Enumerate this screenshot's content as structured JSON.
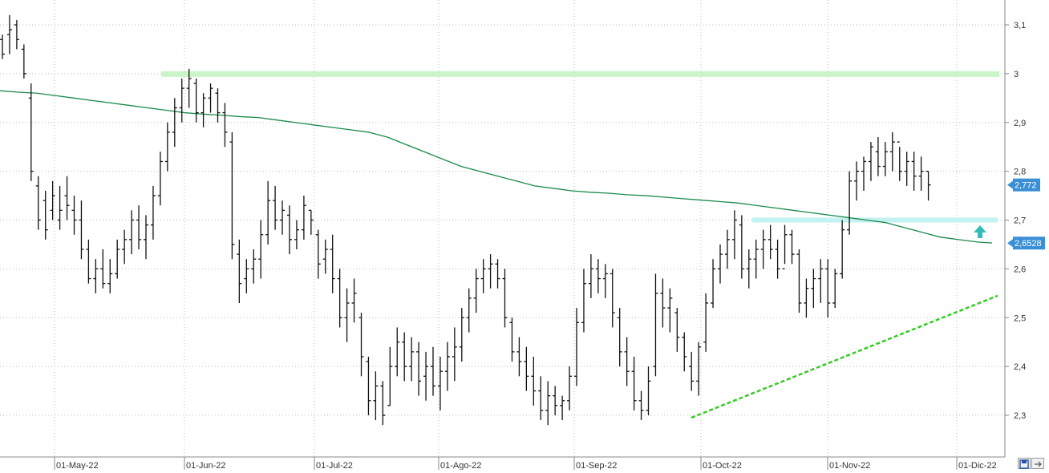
{
  "chart_data": {
    "type": "ohlc",
    "title": "",
    "xlabel": "",
    "ylabel": "",
    "ylim": [
      2.22,
      3.15
    ],
    "y_ticks": [
      "3,1",
      "3",
      "2,9",
      "2,8",
      "2,7",
      "2,6",
      "2,5",
      "2,4",
      "2,3"
    ],
    "y_tick_values": [
      3.1,
      3.0,
      2.9,
      2.8,
      2.7,
      2.6,
      2.5,
      2.4,
      2.3
    ],
    "x_ticks": [
      "01-May-22",
      "01-Jun-22",
      "01-Jul-22",
      "01-Ago-22",
      "01-Sep-22",
      "01-Oct-22",
      "01-Nov-22",
      "01-Dic-22"
    ],
    "grid": true,
    "last_price_label": "2,772",
    "last_price_value": 2.772,
    "moving_average_label": "2,6528",
    "moving_average_value": 2.6528,
    "colors": {
      "bars": "#111111",
      "moving_average": "#1a8a4a",
      "trendline": "#33cc22",
      "resistance_band": "#c9f5c9",
      "mid_band": "#c2f2f2",
      "arrow": "#33bbbb",
      "price_tag": "#3a8fd6"
    },
    "moving_average": [
      [
        0,
        2.965
      ],
      [
        20,
        2.962
      ],
      [
        40,
        2.96
      ],
      [
        60,
        2.955
      ],
      [
        80,
        2.95
      ],
      [
        100,
        2.945
      ],
      [
        120,
        2.94
      ],
      [
        140,
        2.935
      ],
      [
        160,
        2.93
      ],
      [
        180,
        2.925
      ],
      [
        200,
        2.92
      ],
      [
        220,
        2.917
      ],
      [
        240,
        2.915
      ],
      [
        260,
        2.912
      ],
      [
        280,
        2.91
      ],
      [
        300,
        2.905
      ],
      [
        320,
        2.9
      ],
      [
        340,
        2.895
      ],
      [
        360,
        2.89
      ],
      [
        380,
        2.885
      ],
      [
        400,
        2.88
      ],
      [
        420,
        2.87
      ],
      [
        440,
        2.855
      ],
      [
        460,
        2.84
      ],
      [
        480,
        2.825
      ],
      [
        500,
        2.81
      ],
      [
        520,
        2.8
      ],
      [
        540,
        2.79
      ],
      [
        560,
        2.78
      ],
      [
        580,
        2.77
      ],
      [
        600,
        2.765
      ],
      [
        620,
        2.76
      ],
      [
        640,
        2.757
      ],
      [
        660,
        2.755
      ],
      [
        680,
        2.752
      ],
      [
        700,
        2.75
      ],
      [
        720,
        2.747
      ],
      [
        740,
        2.744
      ],
      [
        760,
        2.741
      ],
      [
        780,
        2.738
      ],
      [
        800,
        2.735
      ],
      [
        820,
        2.73
      ],
      [
        840,
        2.725
      ],
      [
        860,
        2.72
      ],
      [
        880,
        2.715
      ],
      [
        900,
        2.71
      ],
      [
        920,
        2.705
      ],
      [
        940,
        2.7
      ],
      [
        960,
        2.695
      ],
      [
        980,
        2.685
      ],
      [
        1000,
        2.675
      ],
      [
        1020,
        2.665
      ],
      [
        1040,
        2.66
      ],
      [
        1060,
        2.655
      ],
      [
        1076,
        2.653
      ]
    ],
    "bars": [
      [
        3.08,
        3.03,
        3.07,
        3.04
      ],
      [
        3.12,
        3.04,
        3.08,
        3.09
      ],
      [
        3.11,
        3.05,
        3.1,
        3.07
      ],
      [
        3.06,
        2.99,
        3.05,
        3.0
      ],
      [
        2.98,
        2.78,
        2.95,
        2.8
      ],
      [
        2.79,
        2.68,
        2.77,
        2.7
      ],
      [
        2.76,
        2.66,
        2.74,
        2.68
      ],
      [
        2.78,
        2.7,
        2.72,
        2.75
      ],
      [
        2.77,
        2.68,
        2.7,
        2.72
      ],
      [
        2.79,
        2.7,
        2.75,
        2.73
      ],
      [
        2.75,
        2.67,
        2.72,
        2.7
      ],
      [
        2.74,
        2.62,
        2.7,
        2.64
      ],
      [
        2.66,
        2.57,
        2.64,
        2.58
      ],
      [
        2.62,
        2.55,
        2.58,
        2.6
      ],
      [
        2.64,
        2.56,
        2.6,
        2.57
      ],
      [
        2.62,
        2.55,
        2.57,
        2.59
      ],
      [
        2.66,
        2.58,
        2.59,
        2.64
      ],
      [
        2.68,
        2.61,
        2.64,
        2.66
      ],
      [
        2.72,
        2.63,
        2.66,
        2.7
      ],
      [
        2.73,
        2.64,
        2.7,
        2.66
      ],
      [
        2.71,
        2.62,
        2.66,
        2.69
      ],
      [
        2.77,
        2.66,
        2.69,
        2.75
      ],
      [
        2.84,
        2.73,
        2.75,
        2.82
      ],
      [
        2.9,
        2.8,
        2.82,
        2.88
      ],
      [
        2.95,
        2.85,
        2.88,
        2.93
      ],
      [
        2.99,
        2.9,
        2.93,
        2.97
      ],
      [
        3.01,
        2.93,
        2.97,
        2.99
      ],
      [
        2.99,
        2.9,
        2.98,
        2.92
      ],
      [
        2.96,
        2.89,
        2.92,
        2.95
      ],
      [
        2.98,
        2.92,
        2.95,
        2.97
      ],
      [
        2.97,
        2.9,
        2.96,
        2.92
      ],
      [
        2.94,
        2.85,
        2.92,
        2.88
      ],
      [
        2.88,
        2.62,
        2.86,
        2.65
      ],
      [
        2.66,
        2.53,
        2.63,
        2.57
      ],
      [
        2.62,
        2.55,
        2.58,
        2.6
      ],
      [
        2.64,
        2.57,
        2.6,
        2.62
      ],
      [
        2.7,
        2.58,
        2.62,
        2.67
      ],
      [
        2.78,
        2.65,
        2.67,
        2.74
      ],
      [
        2.77,
        2.68,
        2.74,
        2.7
      ],
      [
        2.74,
        2.67,
        2.7,
        2.72
      ],
      [
        2.73,
        2.63,
        2.71,
        2.66
      ],
      [
        2.7,
        2.64,
        2.66,
        2.68
      ],
      [
        2.75,
        2.66,
        2.68,
        2.73
      ],
      [
        2.72,
        2.67,
        2.72,
        2.7
      ],
      [
        2.68,
        2.58,
        2.67,
        2.61
      ],
      [
        2.66,
        2.59,
        2.62,
        2.64
      ],
      [
        2.67,
        2.55,
        2.64,
        2.58
      ],
      [
        2.6,
        2.48,
        2.58,
        2.5
      ],
      [
        2.56,
        2.45,
        2.5,
        2.53
      ],
      [
        2.58,
        2.49,
        2.53,
        2.55
      ],
      [
        2.51,
        2.38,
        2.5,
        2.42
      ],
      [
        2.42,
        2.3,
        2.41,
        2.33
      ],
      [
        2.39,
        2.29,
        2.33,
        2.36
      ],
      [
        2.37,
        2.28,
        2.36,
        2.3
      ],
      [
        2.44,
        2.32,
        2.32,
        2.4
      ],
      [
        2.48,
        2.38,
        2.4,
        2.45
      ],
      [
        2.47,
        2.37,
        2.45,
        2.4
      ],
      [
        2.46,
        2.37,
        2.4,
        2.43
      ],
      [
        2.45,
        2.34,
        2.43,
        2.37
      ],
      [
        2.43,
        2.33,
        2.38,
        2.4
      ],
      [
        2.44,
        2.34,
        2.4,
        2.36
      ],
      [
        2.42,
        2.31,
        2.36,
        2.39
      ],
      [
        2.45,
        2.35,
        2.39,
        2.42
      ],
      [
        2.48,
        2.37,
        2.42,
        2.44
      ],
      [
        2.52,
        2.41,
        2.44,
        2.5
      ],
      [
        2.56,
        2.47,
        2.5,
        2.54
      ],
      [
        2.6,
        2.51,
        2.54,
        2.58
      ],
      [
        2.62,
        2.55,
        2.58,
        2.6
      ],
      [
        2.63,
        2.56,
        2.6,
        2.61
      ],
      [
        2.62,
        2.56,
        2.61,
        2.58
      ],
      [
        2.6,
        2.48,
        2.58,
        2.5
      ],
      [
        2.5,
        2.41,
        2.49,
        2.43
      ],
      [
        2.46,
        2.38,
        2.43,
        2.41
      ],
      [
        2.44,
        2.35,
        2.41,
        2.38
      ],
      [
        2.42,
        2.32,
        2.38,
        2.35
      ],
      [
        2.38,
        2.29,
        2.35,
        2.31
      ],
      [
        2.37,
        2.28,
        2.31,
        2.34
      ],
      [
        2.36,
        2.3,
        2.34,
        2.32
      ],
      [
        2.34,
        2.29,
        2.32,
        2.33
      ],
      [
        2.4,
        2.31,
        2.33,
        2.38
      ],
      [
        2.52,
        2.36,
        2.38,
        2.49
      ],
      [
        2.6,
        2.47,
        2.49,
        2.57
      ],
      [
        2.63,
        2.54,
        2.57,
        2.6
      ],
      [
        2.62,
        2.55,
        2.6,
        2.58
      ],
      [
        2.61,
        2.54,
        2.58,
        2.59
      ],
      [
        2.6,
        2.48,
        2.59,
        2.51
      ],
      [
        2.52,
        2.4,
        2.5,
        2.43
      ],
      [
        2.46,
        2.36,
        2.43,
        2.39
      ],
      [
        2.42,
        2.31,
        2.39,
        2.33
      ],
      [
        2.35,
        2.29,
        2.33,
        2.31
      ],
      [
        2.4,
        2.3,
        2.31,
        2.37
      ],
      [
        2.59,
        2.38,
        2.4,
        2.55
      ],
      [
        2.58,
        2.48,
        2.55,
        2.52
      ],
      [
        2.56,
        2.47,
        2.52,
        2.54
      ],
      [
        2.52,
        2.43,
        2.51,
        2.46
      ],
      [
        2.47,
        2.39,
        2.46,
        2.42
      ],
      [
        2.43,
        2.35,
        2.4,
        2.37
      ],
      [
        2.45,
        2.34,
        2.37,
        2.44
      ],
      [
        2.55,
        2.43,
        2.45,
        2.53
      ],
      [
        2.62,
        2.52,
        2.53,
        2.6
      ],
      [
        2.65,
        2.57,
        2.6,
        2.63
      ],
      [
        2.68,
        2.6,
        2.63,
        2.66
      ],
      [
        2.72,
        2.62,
        2.66,
        2.7
      ],
      [
        2.71,
        2.58,
        2.69,
        2.6
      ],
      [
        2.64,
        2.56,
        2.6,
        2.62
      ],
      [
        2.66,
        2.58,
        2.62,
        2.64
      ],
      [
        2.68,
        2.6,
        2.64,
        2.66
      ],
      [
        2.69,
        2.62,
        2.66,
        2.64
      ],
      [
        2.66,
        2.58,
        2.64,
        2.6
      ],
      [
        2.69,
        2.61,
        2.6,
        2.67
      ],
      [
        2.68,
        2.61,
        2.67,
        2.63
      ],
      [
        2.64,
        2.51,
        2.63,
        2.53
      ],
      [
        2.58,
        2.5,
        2.53,
        2.56
      ],
      [
        2.6,
        2.52,
        2.56,
        2.58
      ],
      [
        2.62,
        2.53,
        2.58,
        2.6
      ],
      [
        2.62,
        2.5,
        2.6,
        2.53
      ],
      [
        2.6,
        2.52,
        2.53,
        2.59
      ],
      [
        2.7,
        2.58,
        2.59,
        2.68
      ],
      [
        2.8,
        2.67,
        2.68,
        2.78
      ],
      [
        2.82,
        2.74,
        2.78,
        2.8
      ],
      [
        2.83,
        2.76,
        2.8,
        2.82
      ],
      [
        2.86,
        2.78,
        2.82,
        2.85
      ],
      [
        2.87,
        2.79,
        2.84,
        2.81
      ],
      [
        2.86,
        2.79,
        2.81,
        2.84
      ],
      [
        2.88,
        2.8,
        2.84,
        2.86
      ],
      [
        2.85,
        2.78,
        2.86,
        2.8
      ],
      [
        2.84,
        2.77,
        2.8,
        2.82
      ],
      [
        2.84,
        2.76,
        2.82,
        2.79
      ],
      [
        2.83,
        2.76,
        2.79,
        2.8
      ],
      [
        2.8,
        2.74,
        2.8,
        2.772
      ]
    ]
  }
}
